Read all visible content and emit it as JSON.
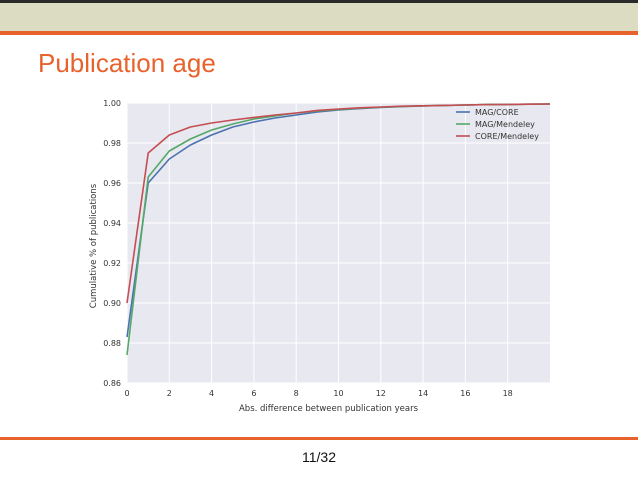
{
  "slide": {
    "title": "Publication age",
    "page_number": "11/32"
  },
  "colors": {
    "header_band": "#dcdcc2",
    "accent": "#e8622c",
    "plot_background": "#e8e8f0",
    "grid": "#ffffff"
  },
  "chart_data": {
    "type": "line",
    "title": "",
    "xlabel": "Abs. difference between publication years",
    "ylabel": "Cumulative % of publications",
    "xlim": [
      0,
      20
    ],
    "ylim": [
      0.86,
      1.0
    ],
    "xticks": [
      0,
      2,
      4,
      6,
      8,
      10,
      12,
      14,
      16,
      18
    ],
    "yticks": [
      0.86,
      0.88,
      0.9,
      0.92,
      0.94,
      0.96,
      0.98,
      1.0
    ],
    "ytick_labels": [
      "0.86",
      "0.88",
      "0.90",
      "0.92",
      "0.94",
      "0.96",
      "0.98",
      "1.00"
    ],
    "grid": true,
    "legend_position": "top-right",
    "x": [
      0,
      1,
      2,
      3,
      4,
      5,
      6,
      7,
      8,
      9,
      10,
      11,
      12,
      13,
      14,
      15,
      16,
      17,
      18,
      19,
      20
    ],
    "series": [
      {
        "name": "MAG/CORE",
        "color": "#4c72b0",
        "values": [
          0.883,
          0.96,
          0.972,
          0.979,
          0.984,
          0.988,
          0.9905,
          0.9925,
          0.994,
          0.9955,
          0.9965,
          0.9972,
          0.9978,
          0.9982,
          0.9985,
          0.9988,
          0.999,
          0.9992,
          0.9993,
          0.9994,
          0.9995
        ]
      },
      {
        "name": "MAG/Mendeley",
        "color": "#55a868",
        "values": [
          0.874,
          0.963,
          0.976,
          0.982,
          0.9865,
          0.9895,
          0.992,
          0.9935,
          0.995,
          0.996,
          0.9968,
          0.9974,
          0.9979,
          0.9983,
          0.9986,
          0.9988,
          0.999,
          0.9992,
          0.9993,
          0.9994,
          0.9995
        ]
      },
      {
        "name": "CORE/Mendeley",
        "color": "#c44e52",
        "values": [
          0.9,
          0.975,
          0.984,
          0.988,
          0.99,
          0.9915,
          0.9928,
          0.994,
          0.995,
          0.9963,
          0.997,
          0.9976,
          0.998,
          0.9984,
          0.9986,
          0.9988,
          0.999,
          0.9992,
          0.9993,
          0.9994,
          0.9995
        ]
      }
    ]
  }
}
